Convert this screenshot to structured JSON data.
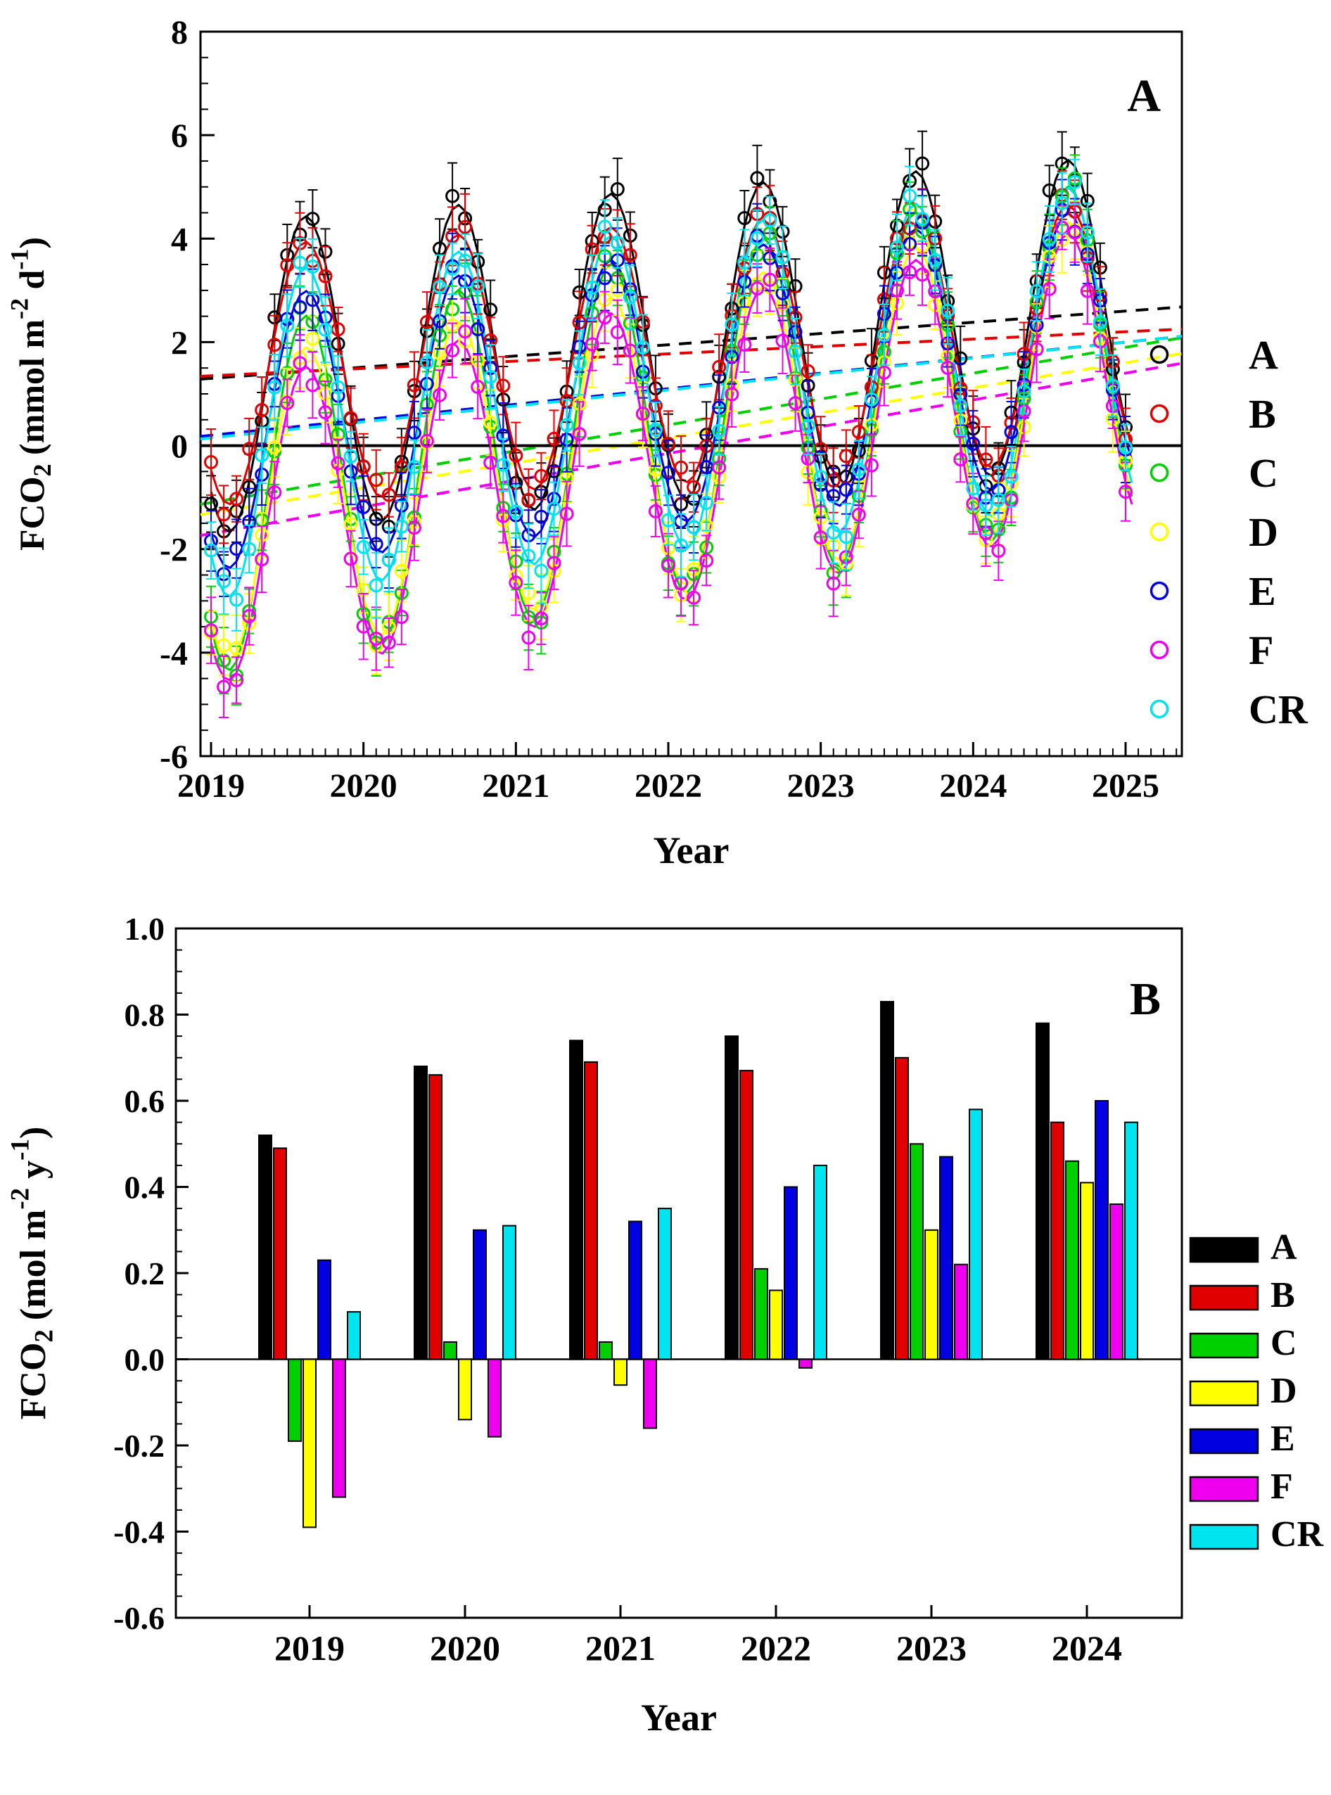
{
  "figure": {
    "background": "#ffffff",
    "panels": [
      "A",
      "B"
    ]
  },
  "chart_data": [
    {
      "panel_label": "A",
      "type": "line",
      "xlabel": "Year",
      "ylabel": "FCO2 (mmol m-2 d-1)",
      "ylabel_parts": [
        {
          "text": "FCO"
        },
        {
          "text": "2",
          "script": "sub"
        },
        {
          "text": " (mmol m",
          "script": "none"
        },
        {
          "text": "-2",
          "script": "sup"
        },
        {
          "text": " d",
          "script": "none"
        },
        {
          "text": "-1",
          "script": "sup"
        },
        {
          "text": ")",
          "script": "none"
        }
      ],
      "x_ticks": [
        2019,
        2020,
        2021,
        2022,
        2023,
        2024,
        2025
      ],
      "y_ticks": [
        -6,
        -4,
        -2,
        0,
        2,
        4,
        6,
        8
      ],
      "xlim": [
        2018.93,
        2025.37
      ],
      "ylim": [
        -6,
        8
      ],
      "zero_line_y": 0,
      "points_per_year": 12,
      "sample_start": 2019.0,
      "sample_end": 2025.08,
      "seasonal_peak_fraction": 0.62,
      "legend": [
        "A",
        "B",
        "C",
        "D",
        "E",
        "F",
        "CR"
      ],
      "series": [
        {
          "name": "A",
          "color": "#000000",
          "trend_start": 1.3,
          "trend_end": 2.6,
          "amplitude": 3.0
        },
        {
          "name": "B",
          "color": "#e00000",
          "trend_start": 1.35,
          "trend_end": 2.2,
          "amplitude": 2.5
        },
        {
          "name": "C",
          "color": "#00d000",
          "trend_start": -1.1,
          "trend_end": 1.9,
          "amplitude": 3.3
        },
        {
          "name": "D",
          "color": "#ffff00",
          "trend_start": -1.3,
          "trend_end": 1.6,
          "amplitude": 2.9
        },
        {
          "name": "E",
          "color": "#0000e0",
          "trend_start": 0.2,
          "trend_end": 2.0,
          "amplitude": 2.6
        },
        {
          "name": "F",
          "color": "#ee00ee",
          "trend_start": -1.7,
          "trend_end": 1.4,
          "amplitude": 2.9
        },
        {
          "name": "CR",
          "color": "#00e4f0",
          "trend_start": 0.15,
          "trend_end": 2.0,
          "amplitude": 3.1
        }
      ]
    },
    {
      "panel_label": "B",
      "type": "bar",
      "xlabel": "Year",
      "ylabel": "FCO2 (mol m-2 y-1)",
      "ylabel_parts": [
        {
          "text": "FCO"
        },
        {
          "text": "2",
          "script": "sub"
        },
        {
          "text": " (mol m",
          "script": "none"
        },
        {
          "text": "-2",
          "script": "sup"
        },
        {
          "text": " y",
          "script": "none"
        },
        {
          "text": "-1",
          "script": "sup"
        },
        {
          "text": ")",
          "script": "none"
        }
      ],
      "categories": [
        2019,
        2020,
        2021,
        2022,
        2023,
        2024
      ],
      "ylim": [
        -0.6,
        1.0
      ],
      "y_ticks": [
        1.0,
        0.8,
        0.6,
        0.4,
        0.2,
        0.0,
        -0.2,
        -0.4,
        -0.6
      ],
      "legend": [
        "A",
        "B",
        "C",
        "D",
        "E",
        "F",
        "CR"
      ],
      "series": [
        {
          "name": "A",
          "color": "#000000",
          "values": [
            0.52,
            0.68,
            0.74,
            0.75,
            0.83,
            0.78
          ]
        },
        {
          "name": "B",
          "color": "#e00000",
          "values": [
            0.49,
            0.66,
            0.69,
            0.67,
            0.7,
            0.55
          ]
        },
        {
          "name": "C",
          "color": "#00d000",
          "values": [
            -0.19,
            0.04,
            0.04,
            0.21,
            0.5,
            0.46
          ]
        },
        {
          "name": "D",
          "color": "#ffff00",
          "values": [
            -0.39,
            -0.14,
            -0.06,
            0.16,
            0.3,
            0.41
          ]
        },
        {
          "name": "E",
          "color": "#0000e0",
          "values": [
            0.23,
            0.3,
            0.32,
            0.4,
            0.47,
            0.6
          ]
        },
        {
          "name": "F",
          "color": "#ee00ee",
          "values": [
            -0.32,
            -0.18,
            -0.16,
            -0.02,
            0.22,
            0.36
          ]
        },
        {
          "name": "CR",
          "color": "#00e4f0",
          "values": [
            0.11,
            0.31,
            0.35,
            0.45,
            0.58,
            0.55
          ]
        }
      ]
    }
  ]
}
